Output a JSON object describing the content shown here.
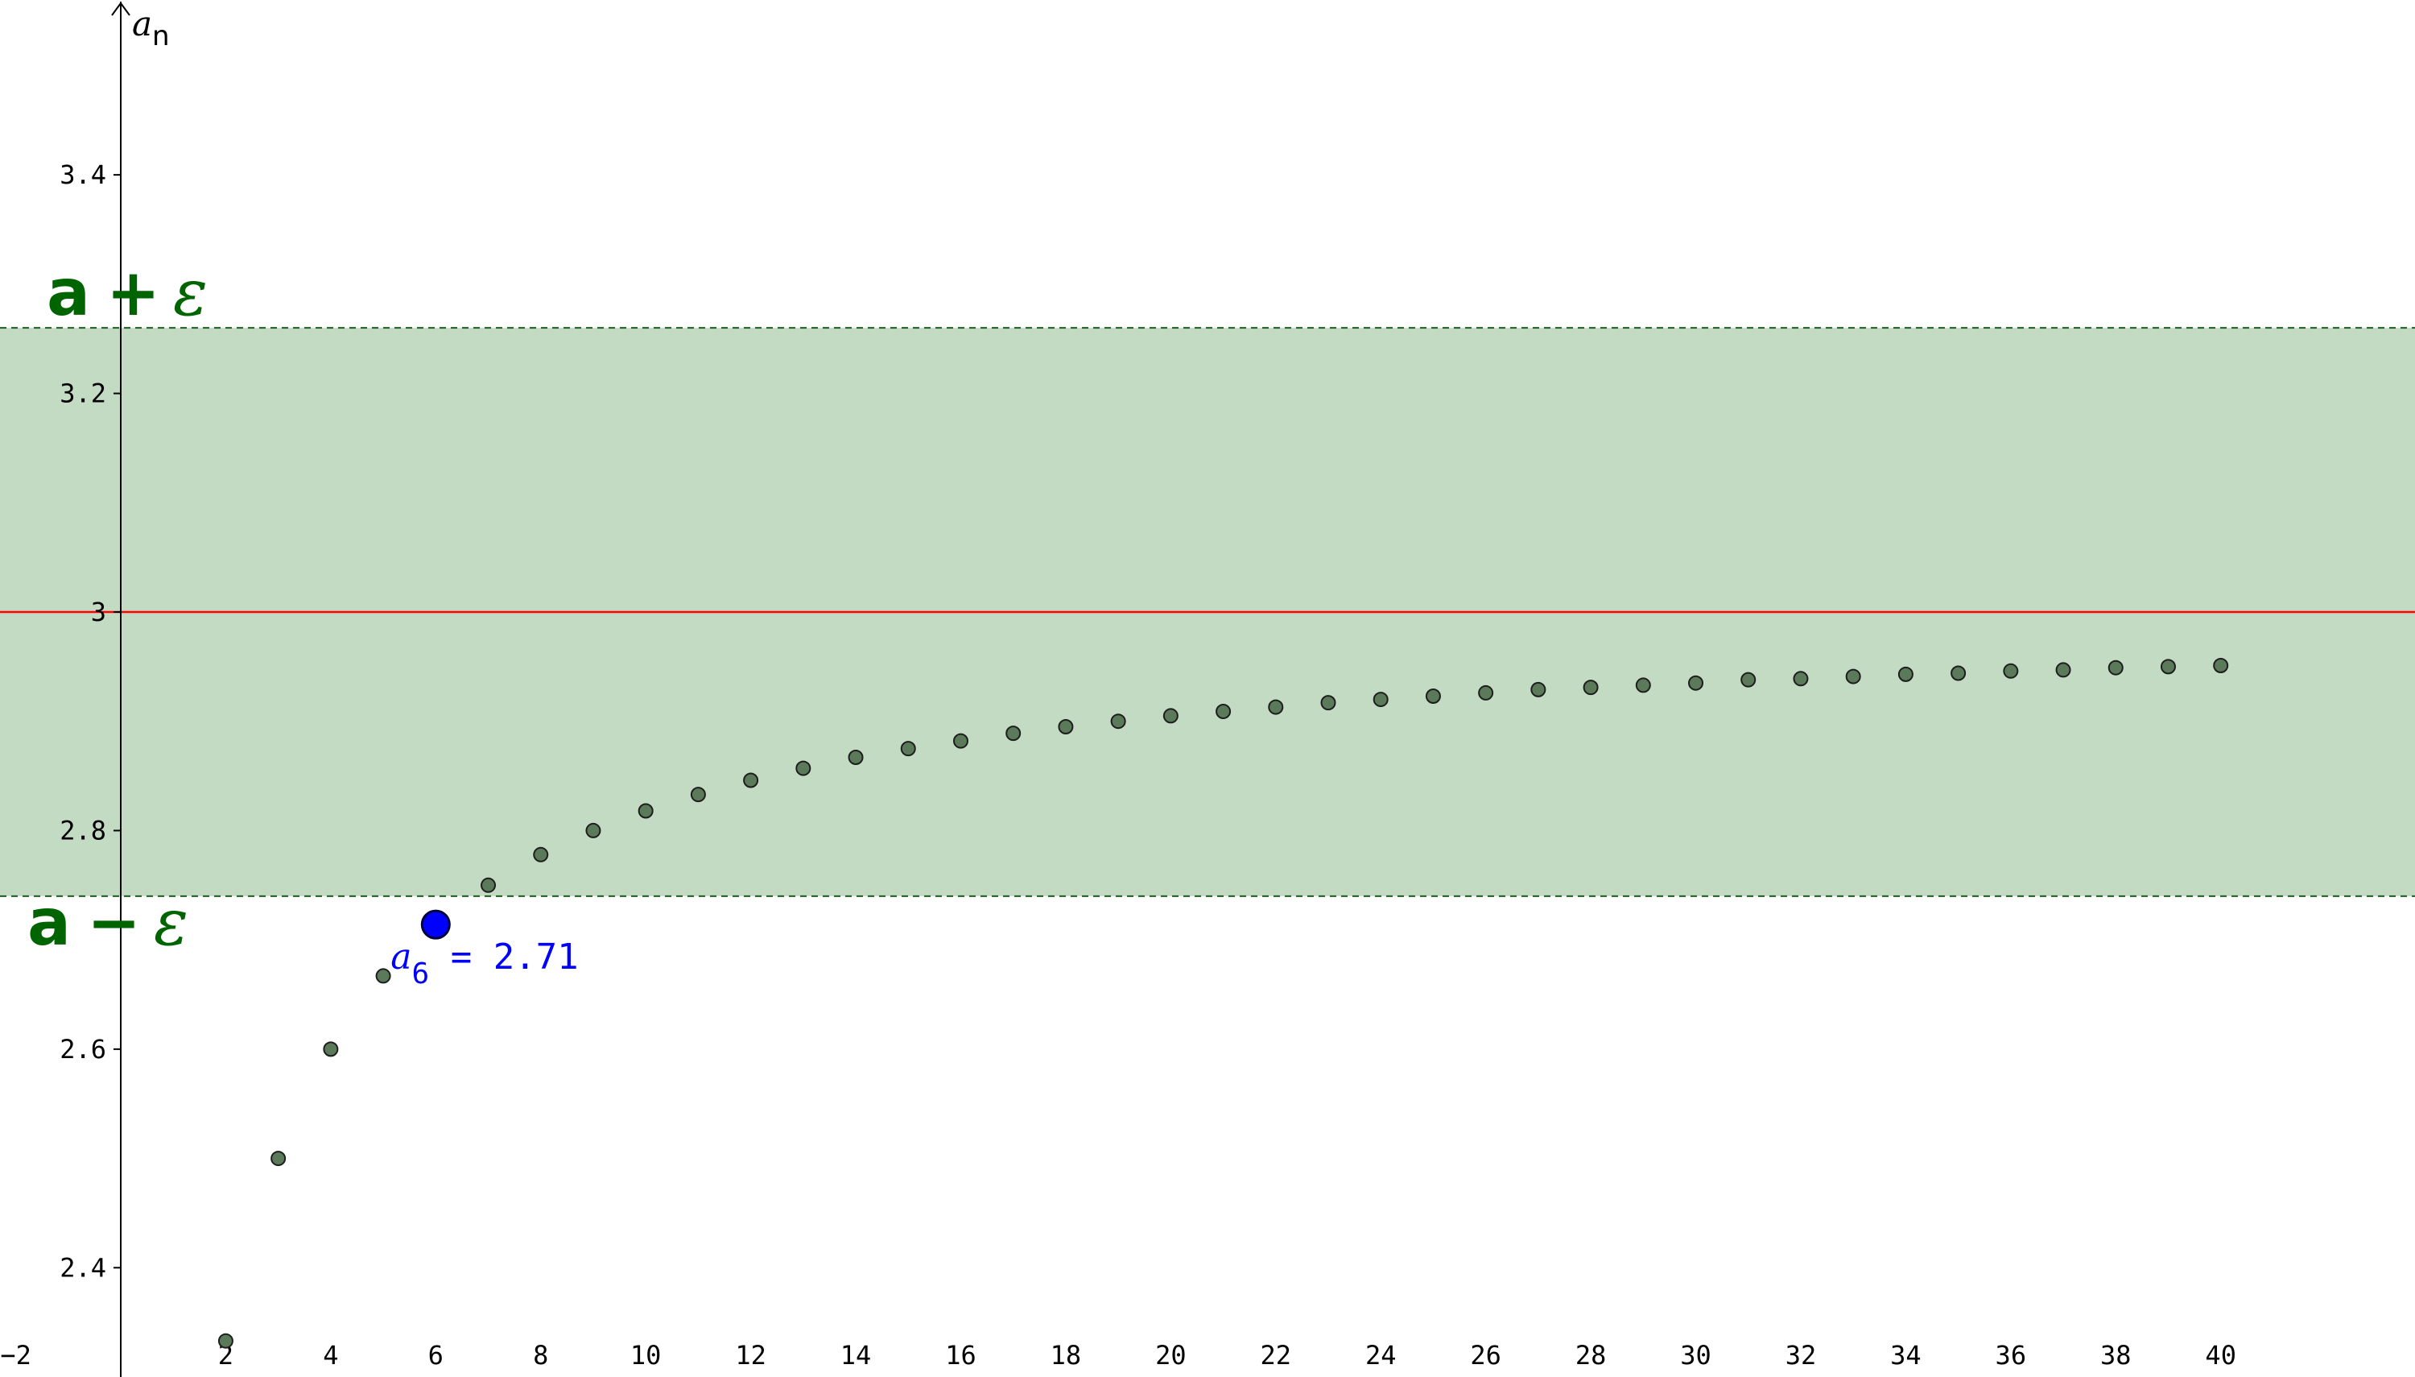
{
  "chart_data": {
    "type": "scatter",
    "xlim": [
      -2.3,
      43.7
    ],
    "ylim": [
      2.3,
      3.56
    ],
    "x_ticks": [
      -2,
      2,
      4,
      6,
      8,
      10,
      12,
      14,
      16,
      18,
      20,
      22,
      24,
      26,
      28,
      30,
      32,
      34,
      36,
      38,
      40
    ],
    "y_ticks": [
      2.4,
      2.6,
      2.8,
      3,
      3.2,
      3.4
    ],
    "ylabel": "a",
    "ylabel_sub": "n",
    "grid": false,
    "limit_line": {
      "y": 3,
      "color": "#ff0000"
    },
    "band": {
      "lower": 2.74,
      "upper": 3.26,
      "fill": "#c2dbc2",
      "border_color": "#1b5e1b",
      "upper_label": {
        "a": "a",
        "op": "+",
        "eps": "ε"
      },
      "lower_label": {
        "a": "a",
        "op": "−",
        "eps": "ε"
      }
    },
    "points": {
      "x": [
        2,
        3,
        4,
        5,
        6,
        7,
        8,
        9,
        10,
        11,
        12,
        13,
        14,
        15,
        16,
        17,
        18,
        19,
        20,
        21,
        22,
        23,
        24,
        25,
        26,
        27,
        28,
        29,
        30,
        31,
        32,
        33,
        34,
        35,
        36,
        37,
        38,
        39,
        40
      ],
      "y": [
        2.333,
        2.5,
        2.6,
        2.667,
        2.714,
        2.75,
        2.778,
        2.8,
        2.818,
        2.833,
        2.846,
        2.857,
        2.867,
        2.875,
        2.882,
        2.889,
        2.895,
        2.9,
        2.905,
        2.909,
        2.913,
        2.917,
        2.92,
        2.923,
        2.926,
        2.929,
        2.931,
        2.933,
        2.935,
        2.938,
        2.939,
        2.941,
        2.943,
        2.944,
        2.946,
        2.947,
        2.949,
        2.95,
        2.951
      ],
      "color": "#5a7a5a"
    },
    "highlight": {
      "x": 6,
      "y": 2.714,
      "color": "#0000ff",
      "label_name": "a",
      "label_sub": "6",
      "label_value": " = 2.71"
    }
  }
}
